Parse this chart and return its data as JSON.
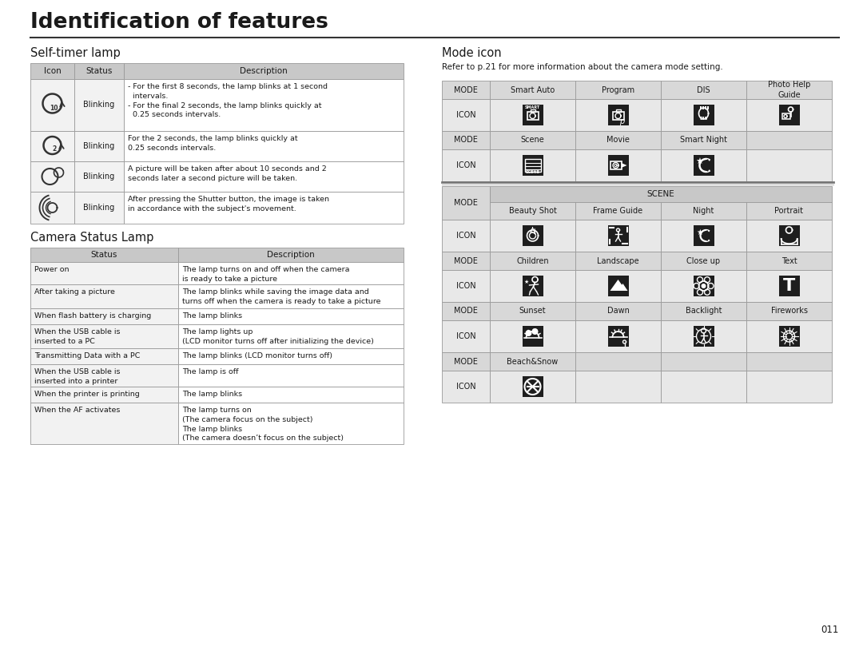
{
  "title": "Identification of features",
  "page_number": "011",
  "bg_color": "#ffffff",
  "header_bg": "#c8c8c8",
  "icon_row_bg": "#e8e8e8",
  "mode_row_bg": "#d8d8d8",
  "cell_bg": "#f2f2f2",
  "white": "#ffffff",
  "dark_icon": "#1e1e1e",
  "border": "#999999",
  "text_dark": "#1a1a1a",
  "section1_title": "Self-timer lamp",
  "section2_title": "Camera Status Lamp",
  "section3_title": "Mode icon",
  "mode_icon_ref": "Refer to p.21 for more information about the camera mode setting.",
  "st_headers": [
    "Icon",
    "Status",
    "Description"
  ],
  "csl_headers": [
    "Status",
    "Description"
  ],
  "csl_rows": [
    [
      "Power on",
      "The lamp turns on and off when the camera\nis ready to take a picture",
      28
    ],
    [
      "After taking a picture",
      "The lamp blinks while saving the image data and\nturns off when the camera is ready to take a picture",
      30
    ],
    [
      "When flash battery is charging",
      "The lamp blinks",
      20
    ],
    [
      "When the USB cable is\ninserted to a PC",
      "The lamp lights up\n(LCD monitor turns off after initializing the device)",
      30
    ],
    [
      "Transmitting Data with a PC",
      "The lamp blinks (LCD monitor turns off)",
      20
    ],
    [
      "When the USB cable is\ninserted into a printer",
      "The lamp is off",
      28
    ],
    [
      "When the printer is printing",
      "The lamp blinks",
      20
    ],
    [
      "When the AF activates",
      "The lamp turns on\n(The camera focus on the subject)\nThe lamp blinks\n(The camera doesn’t focus on the subject)",
      52
    ]
  ]
}
